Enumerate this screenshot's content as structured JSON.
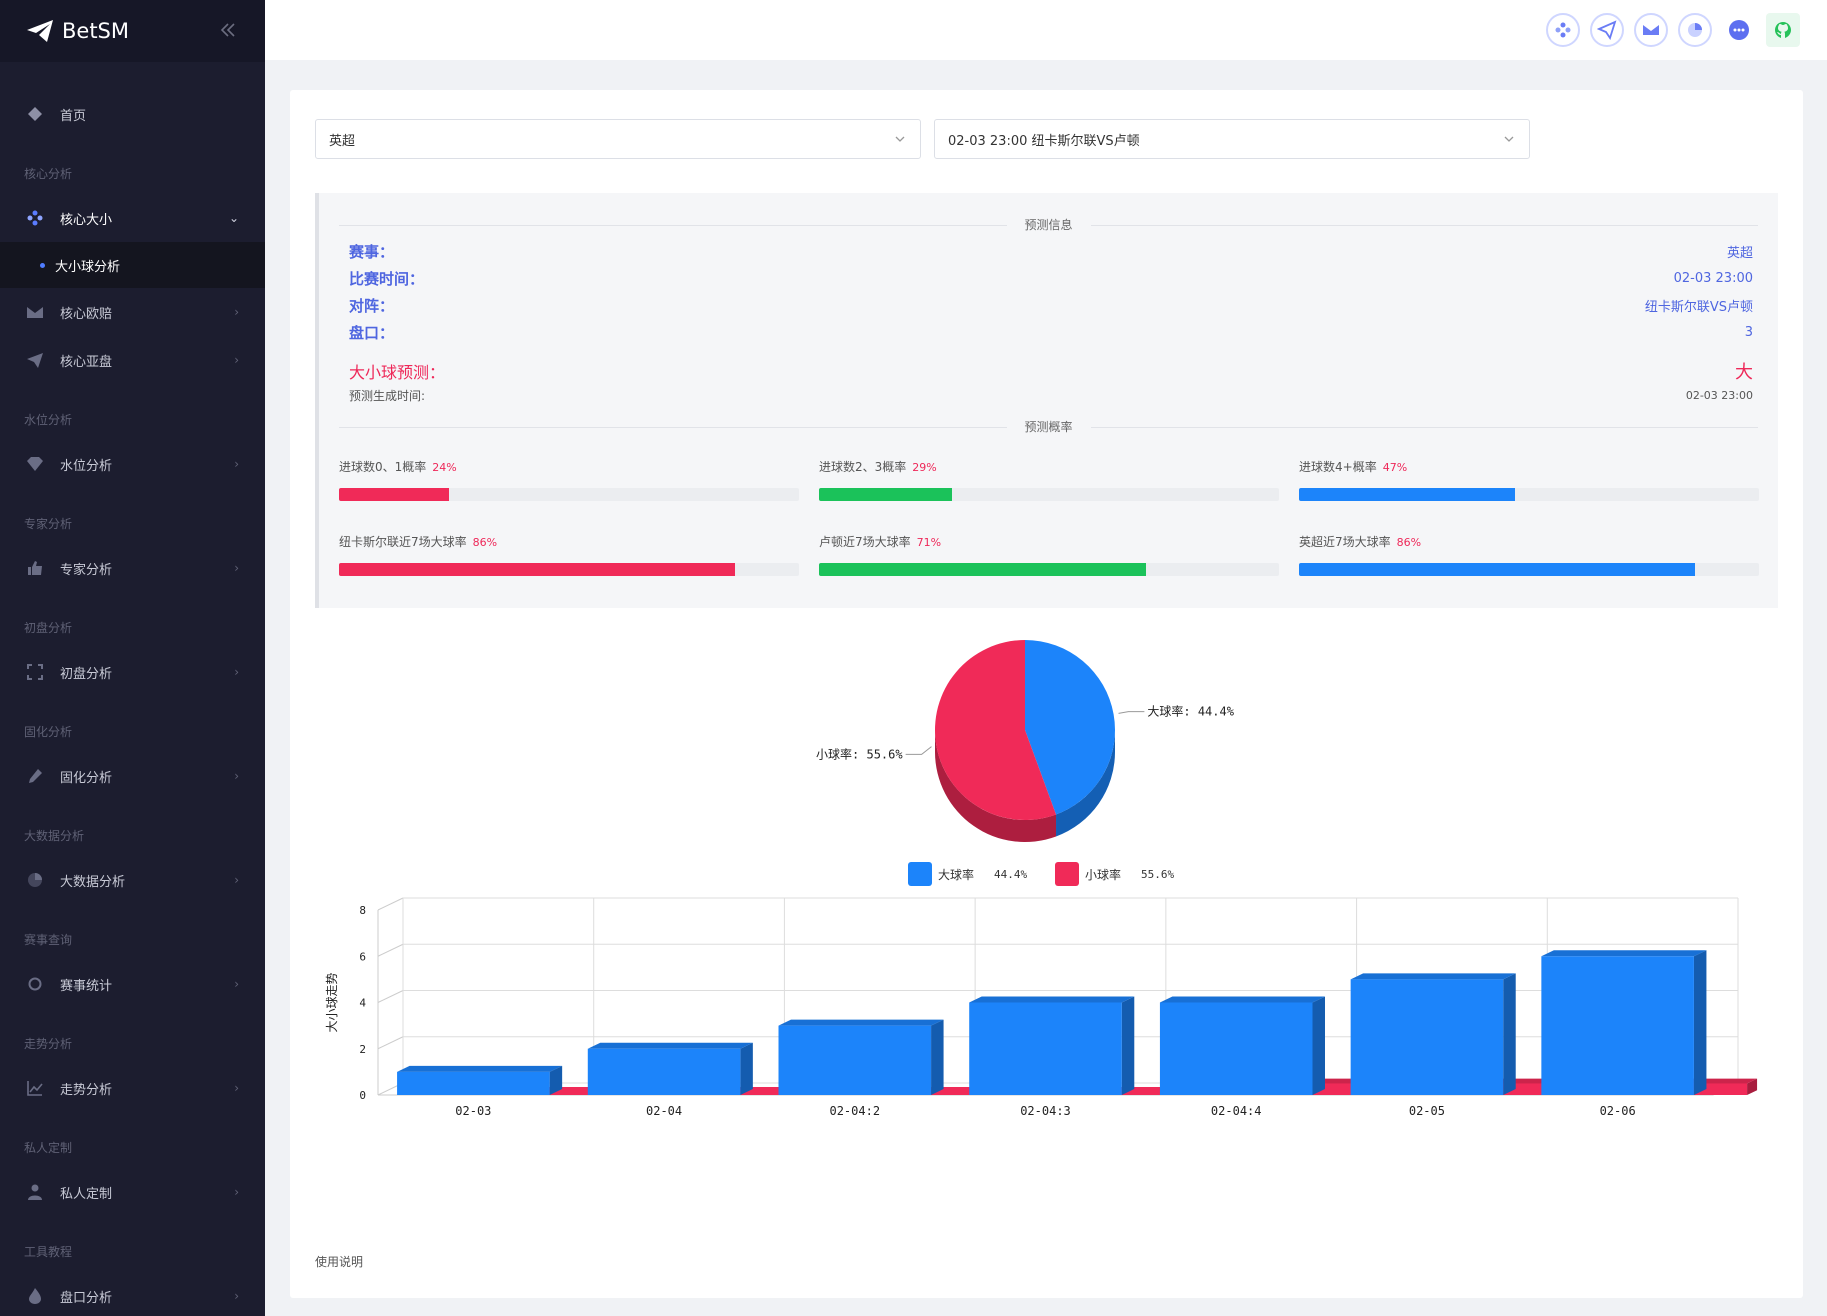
{
  "brand": {
    "name": "BetSM"
  },
  "sidebar": {
    "home": "首页",
    "sections": [
      {
        "title": "核心分析",
        "items": [
          {
            "label": "核心大小",
            "open": true,
            "icon": "grid-dots-icon",
            "sub": [
              "大小球分析"
            ]
          },
          {
            "label": "核心欧赔",
            "icon": "envelope-icon"
          },
          {
            "label": "核心亚盘",
            "icon": "paper-plane-icon"
          }
        ]
      },
      {
        "title": "水位分析",
        "items": [
          {
            "label": "水位分析",
            "icon": "diamond-icon"
          }
        ]
      },
      {
        "title": "专家分析",
        "items": [
          {
            "label": "专家分析",
            "icon": "thumbs-up-icon"
          }
        ]
      },
      {
        "title": "初盘分析",
        "items": [
          {
            "label": "初盘分析",
            "icon": "expand-icon"
          }
        ]
      },
      {
        "title": "固化分析",
        "items": [
          {
            "label": "固化分析",
            "icon": "eyedropper-icon"
          }
        ]
      },
      {
        "title": "大数据分析",
        "items": [
          {
            "label": "大数据分析",
            "icon": "pie-icon"
          }
        ]
      },
      {
        "title": "赛事查询",
        "items": [
          {
            "label": "赛事统计",
            "icon": "circle-icon"
          }
        ]
      },
      {
        "title": "走势分析",
        "items": [
          {
            "label": "走势分析",
            "icon": "line-chart-icon"
          }
        ]
      },
      {
        "title": "私人定制",
        "items": [
          {
            "label": "私人定制",
            "icon": "user-icon"
          }
        ]
      },
      {
        "title": "工具教程",
        "items": [
          {
            "label": "盘口分析",
            "icon": "flame-icon"
          }
        ]
      }
    ]
  },
  "filters": {
    "league": "英超",
    "match": "02-03 23:00 纽卡斯尔联VS卢顿"
  },
  "prediction": {
    "section_title": "预测信息",
    "rows": [
      {
        "label": "赛事：",
        "value": "英超"
      },
      {
        "label": "比赛时间：",
        "value": "02-03 23:00"
      },
      {
        "label": "对阵：",
        "value": "纽卡斯尔联VS卢顿"
      },
      {
        "label": "盘口：",
        "value": "3"
      }
    ],
    "result": {
      "label": "大小球预测：",
      "value": "大"
    },
    "generated": {
      "label": "预测生成时间:",
      "value": "02-03 23:00"
    },
    "prob_title": "预测概率",
    "probs": [
      {
        "label": "进球数0、1概率",
        "pct": "24%",
        "value": 24,
        "color": "#f02a58"
      },
      {
        "label": "进球数2、3概率",
        "pct": "29%",
        "value": 29,
        "color": "#1bc25a"
      },
      {
        "label": "进球数4+概率",
        "pct": "47%",
        "value": 47,
        "color": "#1c84fa"
      },
      {
        "label": "纽卡斯尔联近7场大球率",
        "pct": "86%",
        "value": 86,
        "color": "#f02a58"
      },
      {
        "label": "卢顿近7场大球率",
        "pct": "71%",
        "value": 71,
        "color": "#1bc25a"
      },
      {
        "label": "英超近7场大球率",
        "pct": "86%",
        "value": 86,
        "color": "#1c84fa"
      }
    ]
  },
  "pie": {
    "chart_data": {
      "type": "pie",
      "slices": [
        {
          "name": "大球率",
          "value": 44.4,
          "label": "大球率: 44.4%",
          "legend_value": "44.4%",
          "color": "#1c84fa"
        },
        {
          "name": "小球率",
          "value": 55.6,
          "label": "小球率: 55.6%",
          "legend_value": "55.6%",
          "color": "#f02a58"
        }
      ]
    }
  },
  "trend": {
    "chart_data": {
      "type": "bar",
      "ylabel": "大小球走势",
      "categories": [
        "02-03",
        "02-04",
        "02-04:2",
        "02-04:3",
        "02-04:4",
        "02-05",
        "02-06"
      ],
      "series": [
        {
          "values": [
            1,
            2,
            3,
            4,
            4,
            5,
            6
          ],
          "color": "#1c84fa"
        },
        {
          "values": [
            0,
            0,
            0,
            0,
            1,
            1,
            1
          ],
          "color": "#f02a58"
        }
      ],
      "ylim": [
        0,
        8
      ],
      "yticks": [
        "0",
        "2",
        "4",
        "6",
        "8"
      ]
    }
  },
  "footer": {
    "help": "使用说明"
  }
}
